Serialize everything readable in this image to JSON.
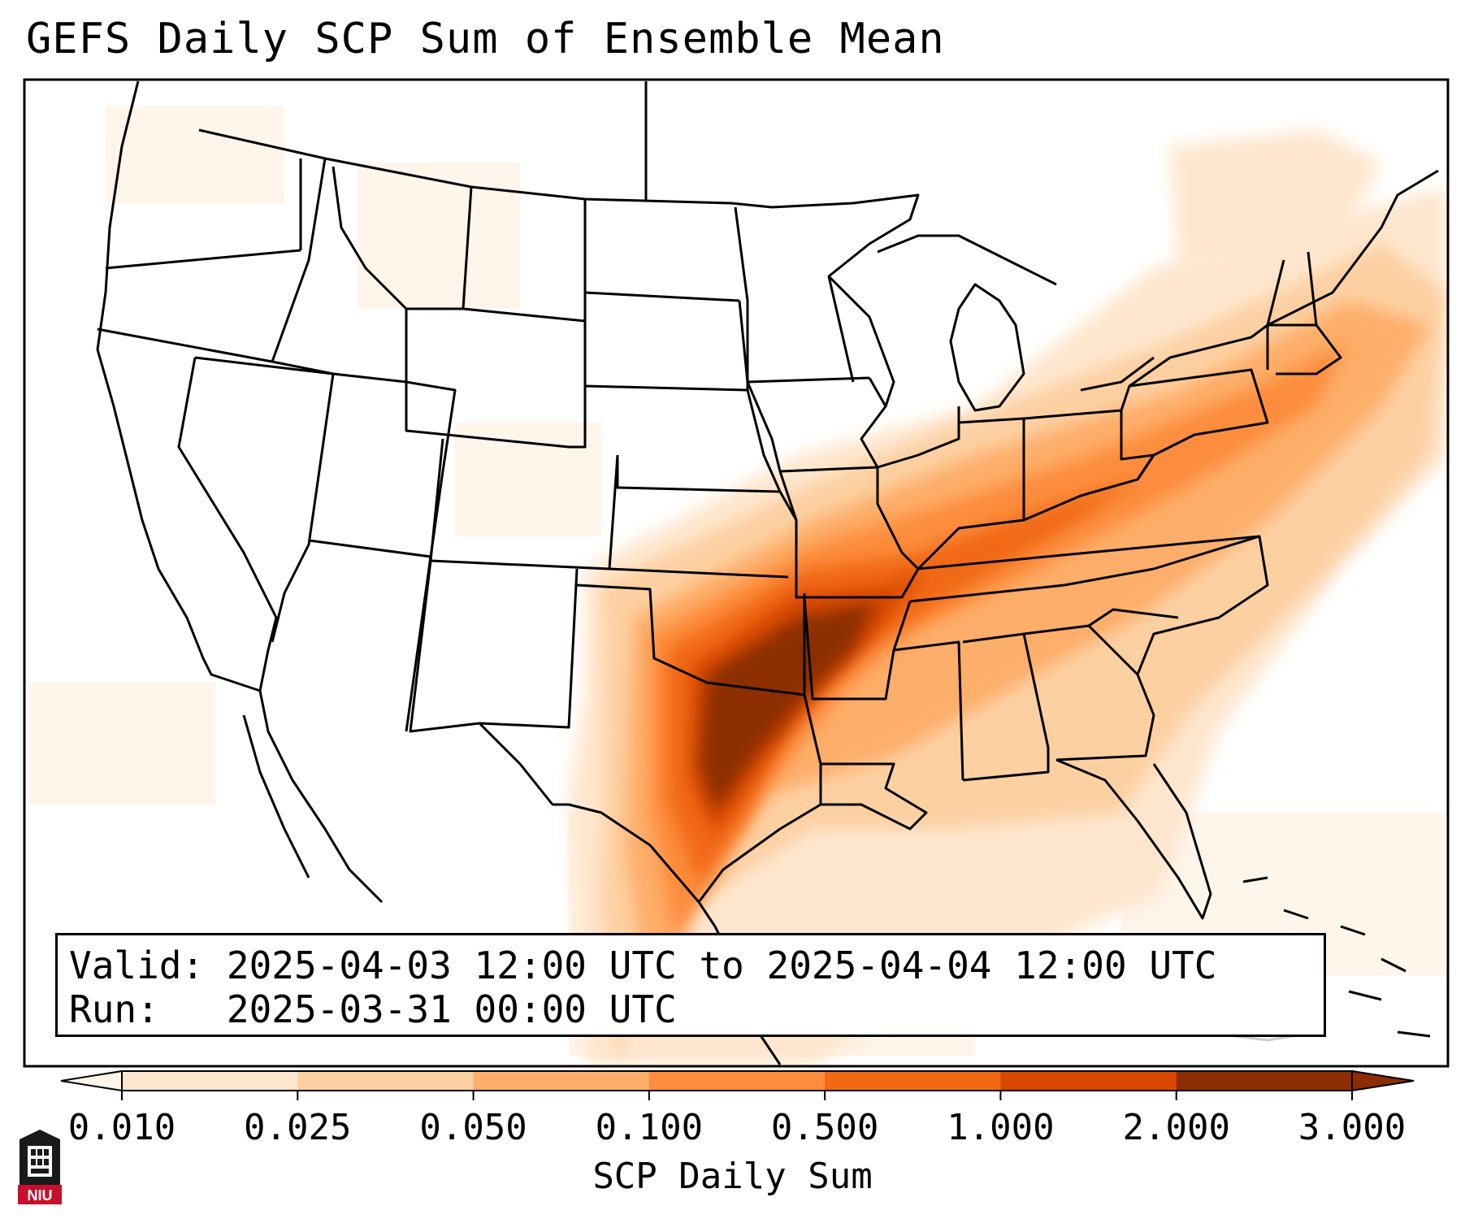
{
  "title": "GEFS Daily SCP Sum of Ensemble Mean",
  "info": {
    "valid_label": "Valid:",
    "valid_value": "2025-04-03 12:00 UTC to 2025-04-04 12:00 UTC",
    "run_label": "Run:",
    "run_value": "2025-03-31 00:00 UTC"
  },
  "colorbar": {
    "label": "SCP Daily Sum",
    "ticks": [
      "0.010",
      "0.025",
      "0.050",
      "0.100",
      "0.500",
      "1.000",
      "2.000",
      "3.000"
    ],
    "colors": [
      "#fff5eb",
      "#fee6ce",
      "#fdd0a2",
      "#fdae6b",
      "#fd8d3c",
      "#f16913",
      "#d94801",
      "#8c2d04"
    ],
    "extend": "both"
  },
  "logo_text": "NIU"
}
